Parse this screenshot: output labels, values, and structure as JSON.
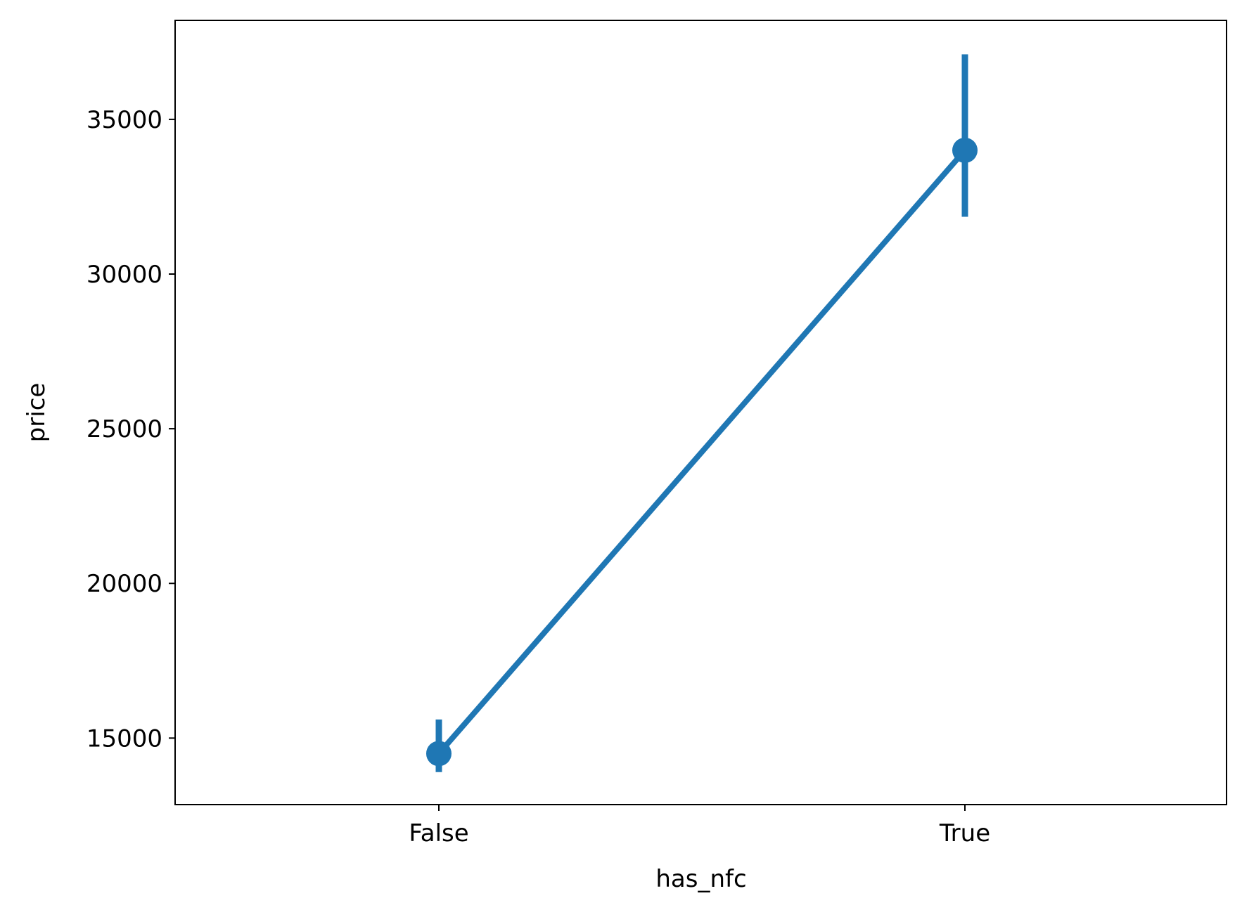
{
  "chart_data": {
    "type": "line",
    "plot_style": "point-plot with error bars",
    "categories": [
      "False",
      "True"
    ],
    "series": [
      {
        "values": [
          14500,
          34000
        ],
        "error_low": [
          13900,
          31850
        ],
        "error_high": [
          15600,
          37100
        ],
        "color": "#1f77b4"
      }
    ],
    "xlabel": "has_nfc",
    "ylabel": "price",
    "ylim": [
      12850,
      38200
    ],
    "yticks": [
      15000,
      20000,
      25000,
      30000,
      35000
    ],
    "ytick_labels": [
      "15000",
      "20000",
      "25000",
      "30000",
      "35000"
    ],
    "grid": false,
    "legend": "none"
  }
}
